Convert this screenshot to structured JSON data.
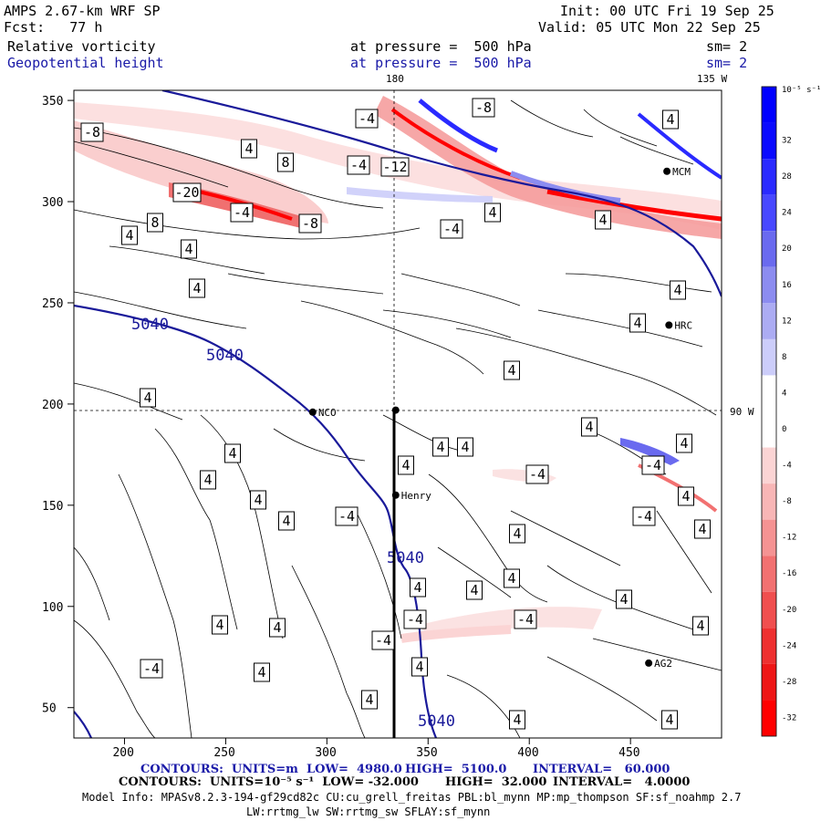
{
  "header": {
    "model": "AMPS 2.67-km WRF SP",
    "forecast": "Fcst:   77 h",
    "init": "Init: 00 UTC Fri 19 Sep 25",
    "valid": "Valid: 05 UTC Mon 22 Sep 25",
    "field1_name": "Relative vorticity",
    "field1_level": "at pressure =  500 hPa",
    "field1_smooth": "sm= 2",
    "field2_name": "Geopotential height",
    "field2_level": "at pressure =  500 hPa",
    "field2_smooth": "sm= 2"
  },
  "map": {
    "lon_labels": {
      "top_180": "180",
      "top_135w": "135 W",
      "right_90w": "90 W"
    },
    "x_ticks": [
      "200",
      "250",
      "300",
      "350",
      "400",
      "450"
    ],
    "y_ticks": [
      "350",
      "300",
      "250",
      "200",
      "150",
      "100",
      "50"
    ],
    "stations": [
      {
        "id": "NCO",
        "label": "NCO",
        "x": 293,
        "y": 196
      },
      {
        "id": "henry",
        "label": "Henry",
        "x": 334,
        "y": 155
      },
      {
        "id": "hrc",
        "label": "HRC",
        "x": 469,
        "y": 239
      },
      {
        "id": "ag2",
        "label": "AG2",
        "x": 459,
        "y": 72
      },
      {
        "id": "mcm",
        "label": "MCM",
        "x": 468,
        "y": 315
      },
      {
        "id": "pole",
        "label": "",
        "x": 334,
        "y": 197
      }
    ],
    "height_contour_labels": [
      "5040",
      "5040",
      "5040",
      "5040"
    ],
    "vorticity_labels": [
      "-8",
      "4",
      "8",
      "-4",
      "-4",
      "-12",
      "-20",
      "-4",
      "-8",
      "8",
      "4",
      "4",
      "4",
      "-4",
      "4",
      "4",
      "4",
      "4",
      "4",
      "4",
      "4",
      "4",
      "4",
      "4",
      "-4",
      "4",
      "-4",
      "-4",
      "4",
      "4",
      "4",
      "4",
      "4",
      "4",
      "4",
      "4",
      "4",
      "4",
      "-4",
      "-4",
      "4",
      "-4",
      "4",
      "4",
      "-4",
      "-4",
      "4",
      "4",
      "4",
      "4",
      "-8",
      "4",
      "4",
      "4"
    ]
  },
  "colorbar": {
    "unit": "10⁻⁵ s⁻¹",
    "ticks": [
      "32",
      "28",
      "24",
      "20",
      "16",
      "12",
      "8",
      "4",
      "0",
      "-4",
      "-8",
      "-12",
      "-16",
      "-20",
      "-24",
      "-28",
      "-32"
    ],
    "colors": [
      "#0a0aff",
      "#2a2aff",
      "#4848ff",
      "#6a6aef",
      "#8c8cf0",
      "#acacf3",
      "#cccdfa",
      "#ffffff",
      "#ffffff",
      "#fbd4d4",
      "#f8b6b6",
      "#f59393",
      "#f27171",
      "#f04f4f",
      "#ee3030",
      "#ee1616",
      "#ff0000"
    ]
  },
  "footer": {
    "line1_a": "CONTOURS:  UNITS=m  LOW=  4980.0",
    "line1_b": "HIGH=  5100.0",
    "line1_c": "INTERVAL=   60.000",
    "line2_a": "CONTOURS:  UNITS=10⁻⁵ s⁻¹  LOW= -32.000",
    "line2_b": "HIGH=  32.000",
    "line2_c": "INTERVAL=   4.0000",
    "line3": "Model Info: MPASv8.2.3-194-gf29cd82c CU:cu_grell_freitas PBL:bl_mynn MP:mp_thompson SF:sf_noahmp 2.7",
    "line4": "LW:rrtmg_lw SW:rrtmg_sw SFLAY:sf_mynn"
  }
}
